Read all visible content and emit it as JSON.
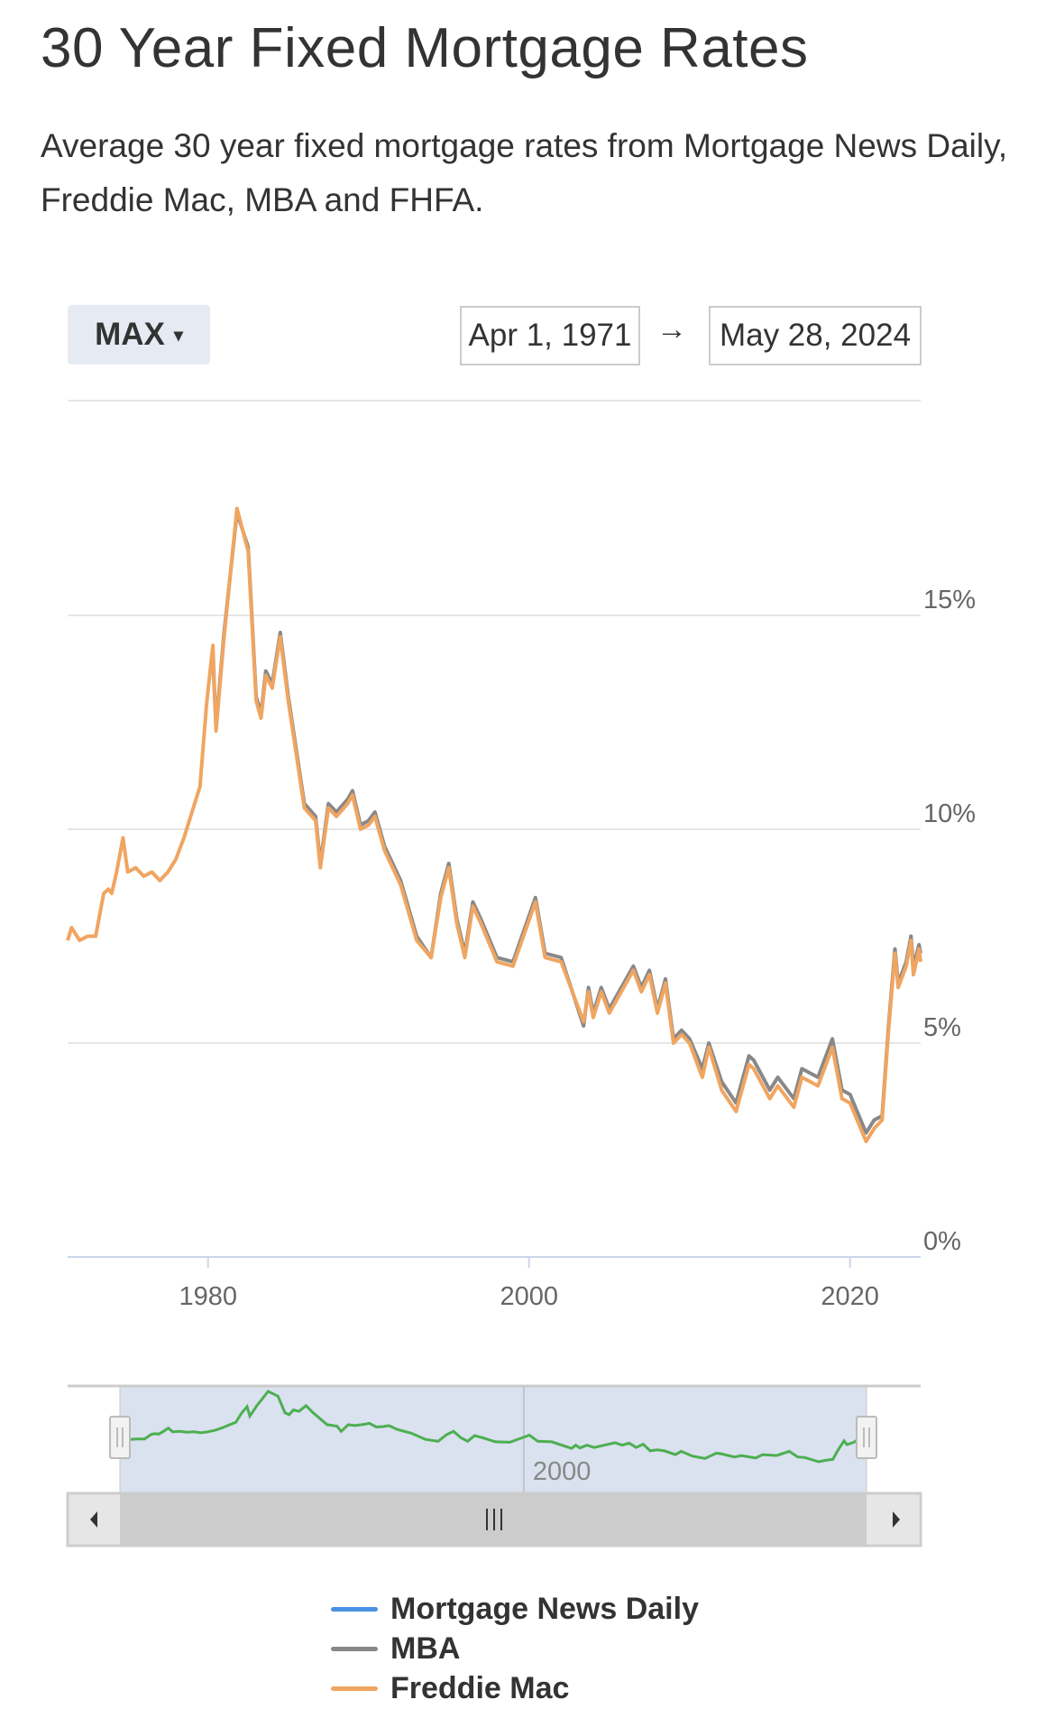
{
  "header": {
    "title": "30 Year Fixed Mortgage Rates",
    "subtitle": "Average 30 year fixed mortgage rates from Mortgage News Daily, Freddie Mac, MBA and FHFA."
  },
  "controls": {
    "range_label": "MAX",
    "range_caret": "▾",
    "date_from": "Apr 1, 1971",
    "arrow": "→",
    "date_to": "May 28, 2024"
  },
  "navigator": {
    "tick_label": "2000",
    "handle_glyph": "||",
    "scroll_thumb_glyph": "|||",
    "scroll_left_icon": "triangle-left",
    "scroll_right_icon": "triangle-right",
    "line_color": "#4caf50"
  },
  "chart_data": {
    "type": "line",
    "title": "30 Year Fixed Mortgage Rates",
    "xlabel": "",
    "ylabel": "",
    "xlim": [
      1971.25,
      2024.4
    ],
    "ylim": [
      0,
      20
    ],
    "grid": true,
    "legend_position": "bottom",
    "x_ticks": [
      "1980",
      "2000",
      "2020"
    ],
    "x_tick_values": [
      1980,
      2000,
      2020
    ],
    "y_ticks": [
      "0%",
      "5%",
      "10%",
      "15%"
    ],
    "y_tick_values": [
      0,
      5,
      10,
      15
    ],
    "series": [
      {
        "name": "Mortgage News Daily",
        "color": "#4a90e2",
        "x": [],
        "values": []
      },
      {
        "name": "MBA",
        "color": "#888888",
        "x": [
          1980.3,
          1980.5,
          1981,
          1981.8,
          1982.5,
          1983,
          1983.3,
          1983.6,
          1984,
          1984.5,
          1985,
          1986,
          1986.7,
          1987,
          1987.5,
          1988,
          1988.7,
          1989,
          1989.5,
          1990,
          1990.4,
          1991,
          1992,
          1993,
          1993.9,
          1994.5,
          1995,
          1995.5,
          1996,
          1996.5,
          1997,
          1998,
          1999,
          2000.4,
          2001,
          2002,
          2003.4,
          2003.7,
          2004,
          2004.5,
          2005,
          2006.5,
          2007,
          2007.5,
          2008,
          2008.5,
          2009,
          2009.5,
          2010,
          2010.8,
          2011.2,
          2012,
          2012.9,
          2013.7,
          2014,
          2015,
          2015.5,
          2016.5,
          2017,
          2018,
          2018.9,
          2019.5,
          2020,
          2021,
          2021.5,
          2022,
          2022.4,
          2022.8,
          2023,
          2023.5,
          2023.8,
          2023.95,
          2024.3,
          2024.4
        ],
        "values": [
          14.0,
          12.4,
          14.6,
          17.4,
          16.6,
          13.1,
          12.7,
          13.7,
          13.4,
          14.6,
          13.1,
          10.6,
          10.3,
          9.2,
          10.6,
          10.4,
          10.7,
          10.9,
          10.1,
          10.2,
          10.4,
          9.6,
          8.8,
          7.5,
          7.0,
          8.5,
          9.2,
          7.9,
          7.1,
          8.3,
          7.9,
          7.0,
          6.9,
          8.4,
          7.1,
          7.0,
          5.4,
          6.3,
          5.7,
          6.3,
          5.8,
          6.8,
          6.3,
          6.7,
          5.8,
          6.5,
          5.1,
          5.3,
          5.1,
          4.4,
          5.0,
          4.1,
          3.6,
          4.7,
          4.6,
          3.9,
          4.2,
          3.7,
          4.4,
          4.2,
          5.1,
          3.9,
          3.8,
          2.9,
          3.2,
          3.3,
          5.4,
          7.2,
          6.4,
          6.9,
          7.5,
          6.8,
          7.3,
          7.1
        ]
      },
      {
        "name": "Freddie Mac",
        "color": "#f0a561",
        "x": [
          1971.25,
          1971.5,
          1972,
          1972.5,
          1973,
          1973.5,
          1973.8,
          1974,
          1974.3,
          1974.7,
          1975,
          1975.5,
          1976,
          1976.5,
          1977,
          1977.5,
          1978,
          1978.5,
          1979,
          1979.5,
          1979.9,
          1980.3,
          1980.5,
          1981,
          1981.8,
          1982.5,
          1983,
          1983.3,
          1983.6,
          1984,
          1984.5,
          1985,
          1986,
          1986.7,
          1987,
          1987.5,
          1988,
          1988.7,
          1989,
          1989.5,
          1990,
          1990.4,
          1991,
          1992,
          1993,
          1993.9,
          1994.5,
          1995,
          1995.5,
          1996,
          1996.5,
          1997,
          1998,
          1999,
          2000.4,
          2001,
          2002,
          2003.4,
          2003.7,
          2004,
          2004.5,
          2005,
          2006.5,
          2007,
          2007.5,
          2008,
          2008.5,
          2009,
          2009.5,
          2010,
          2010.8,
          2011.2,
          2012,
          2012.9,
          2013.7,
          2014,
          2015,
          2015.5,
          2016.5,
          2017,
          2018,
          2018.9,
          2019.5,
          2020,
          2021,
          2021.5,
          2022,
          2022.4,
          2022.8,
          2023,
          2023.5,
          2023.8,
          2023.95,
          2024.3,
          2024.4
        ],
        "values": [
          7.4,
          7.7,
          7.4,
          7.5,
          7.5,
          8.5,
          8.6,
          8.5,
          9.0,
          9.8,
          9.0,
          9.1,
          8.9,
          9.0,
          8.8,
          9.0,
          9.3,
          9.8,
          10.4,
          11.0,
          12.9,
          14.3,
          12.3,
          14.5,
          17.5,
          16.5,
          13.0,
          12.6,
          13.6,
          13.3,
          14.5,
          13.0,
          10.5,
          10.2,
          9.1,
          10.5,
          10.3,
          10.6,
          10.8,
          10.0,
          10.1,
          10.3,
          9.5,
          8.7,
          7.4,
          7.0,
          8.4,
          9.1,
          7.8,
          7.0,
          8.2,
          7.8,
          6.9,
          6.8,
          8.3,
          7.0,
          6.9,
          5.5,
          6.2,
          5.6,
          6.2,
          5.7,
          6.7,
          6.2,
          6.6,
          5.7,
          6.4,
          5.0,
          5.2,
          5.0,
          4.2,
          4.9,
          3.9,
          3.4,
          4.5,
          4.4,
          3.7,
          4.0,
          3.5,
          4.2,
          4.0,
          4.9,
          3.7,
          3.6,
          2.7,
          3.0,
          3.2,
          5.3,
          7.1,
          6.3,
          6.8,
          7.4,
          6.6,
          7.2,
          6.9
        ]
      }
    ]
  }
}
